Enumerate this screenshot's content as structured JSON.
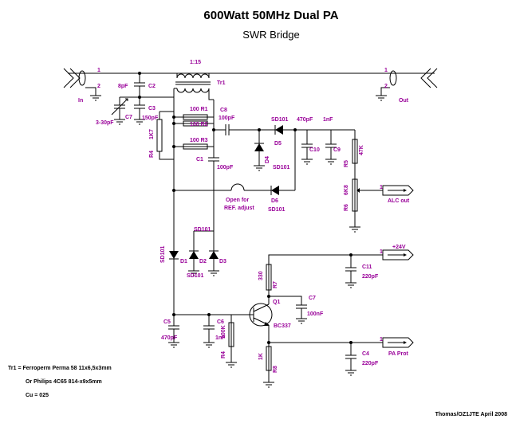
{
  "header": {
    "title": "600Watt 50MHz Dual PA",
    "subtitle": "SWR Bridge"
  },
  "labels": [
    "1:15",
    "In",
    "Out",
    "8pF",
    "C2",
    "Tr1",
    "C3",
    "150pF",
    "3-30pF",
    "C7",
    "100 R1",
    "100 R2",
    "100 R3",
    "1K7",
    "R4",
    "C8",
    "100pF",
    "SD101",
    "470pF",
    "1nF",
    "D5",
    "C10",
    "C9",
    "D4",
    "SD101",
    "C1",
    "100pF",
    "R5",
    "47K",
    "6K8",
    "R6",
    "D6",
    "SD101",
    "Open for",
    "REF. adjust",
    "ALC out",
    "SD101",
    "SD101",
    "D1",
    "D2",
    "D3",
    "SD101",
    "+24V",
    "C11",
    "220pF",
    "330",
    "R7",
    "Q1",
    "BC337",
    "C7",
    "100nF",
    "C5",
    "470pF",
    "C6",
    "1nF",
    "100K",
    "R4",
    "1K",
    "R8",
    "C4",
    "220pF",
    "PA Prot",
    "1",
    "2",
    "1",
    "2",
    "1",
    "1",
    "1"
  ],
  "notes": [
    "Tr1 = Ferroperm Perma 58 11x6,5x3mm",
    "Or Philips 4C65 814-x9x5mm",
    "Cu = 025"
  ],
  "footer": "Thomas/OZ1JTE April 2008"
}
